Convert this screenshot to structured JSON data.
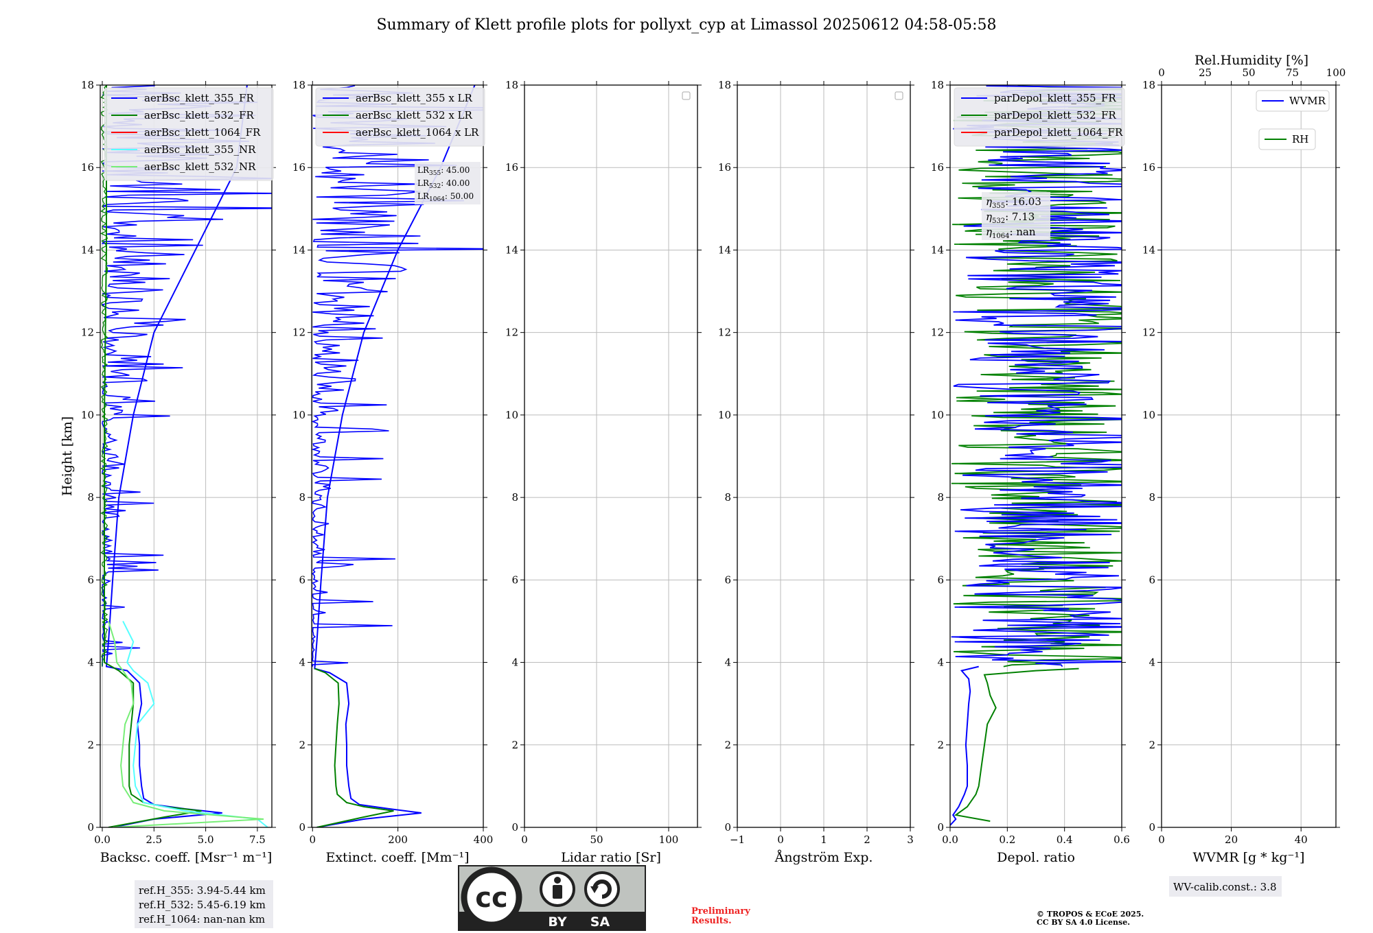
{
  "title": "Summary of Klett profile plots for pollyxt_cyp at Limassol 20250612 04:58-05:58",
  "ylabel": "Height [km]",
  "colors": {
    "blue": "#0000ff",
    "green": "#008000",
    "red": "#ff0000",
    "cyan": "#55ffff",
    "lightgreen": "#77ee77",
    "grid": "#bbbbbb"
  },
  "chart_data": [
    {
      "type": "line",
      "id": "bsc",
      "xlabel": "Backsc. coeff. [Msr⁻¹ m⁻¹]",
      "xlim": [
        -0.1,
        8.2
      ],
      "ylim": [
        0,
        18
      ],
      "xticks": [
        0.0,
        2.5,
        5.0,
        7.5
      ],
      "xtick_labels": [
        "0.0",
        "2.5",
        "5.0",
        "7.5"
      ],
      "yticks": [
        0,
        2,
        4,
        6,
        8,
        10,
        12,
        14,
        16,
        18
      ],
      "legend": [
        "aerBsc_klett_355_FR",
        "aerBsc_klett_532_FR",
        "aerBsc_klett_1064_FR",
        "aerBsc_klett_355_NR",
        "aerBsc_klett_532_NR"
      ],
      "legend_colors": [
        "#0000ff",
        "#008000",
        "#ff0000",
        "#55ffff",
        "#77ee77"
      ],
      "info": [
        "ref.H_355: 3.94-5.44 km",
        "ref.H_532: 5.45-6.19 km",
        "ref.H_1064: nan-nan km"
      ],
      "series": [
        {
          "name": "aerBsc_klett_355_FR",
          "color": "#0000ff",
          "y": [
            0,
            0.2,
            0.35,
            0.45,
            0.55,
            0.7,
            1.0,
            1.5,
            2.0,
            2.5,
            3.0,
            3.5,
            3.8,
            3.9,
            4.5,
            6,
            8,
            10,
            12,
            14,
            16,
            18
          ],
          "x": [
            0.5,
            2.5,
            5.8,
            4.0,
            2.5,
            2.0,
            1.9,
            1.8,
            1.8,
            1.7,
            1.9,
            1.8,
            1.2,
            0.2,
            0.3,
            0.5,
            0.8,
            1.5,
            2.5,
            4.5,
            6.5,
            7.0
          ]
        },
        {
          "name": "aerBsc_klett_532_FR",
          "color": "#008000",
          "y": [
            0,
            0.25,
            0.4,
            0.5,
            0.6,
            0.8,
            1.0,
            1.5,
            2.0,
            2.5,
            3.0,
            3.5,
            3.8,
            4.0,
            6,
            10,
            14,
            18
          ],
          "x": [
            0.3,
            3.0,
            4.8,
            3.0,
            2.0,
            1.4,
            1.3,
            1.3,
            1.3,
            1.4,
            1.5,
            1.5,
            0.8,
            0.1,
            0.1,
            0.1,
            0.2,
            0.2
          ]
        },
        {
          "name": "aerBsc_klett_355_NR",
          "color": "#55ffff",
          "y": [
            0,
            0.2,
            0.4,
            0.6,
            1.0,
            1.5,
            2.0,
            2.5,
            3.0,
            3.5,
            3.8,
            4.0,
            4.5,
            5.0
          ],
          "x": [
            8.0,
            7.5,
            4.0,
            2.0,
            1.6,
            1.5,
            1.6,
            1.7,
            2.5,
            2.2,
            1.5,
            1.2,
            1.5,
            1.0
          ]
        },
        {
          "name": "aerBsc_klett_532_NR",
          "color": "#77ee77",
          "y": [
            0,
            0.2,
            0.4,
            0.6,
            1.0,
            1.5,
            2.0,
            2.5,
            3.0,
            3.5,
            3.8,
            4.0,
            4.5,
            5.0
          ],
          "x": [
            0.5,
            7.8,
            3.0,
            1.5,
            1.0,
            0.9,
            1.0,
            1.1,
            1.5,
            1.4,
            1.0,
            0.7,
            0.6,
            0.3
          ]
        }
      ]
    },
    {
      "type": "line",
      "id": "ext",
      "xlabel": "Extinct. coeff. [Mm⁻¹]",
      "xlim": [
        -2,
        400
      ],
      "ylim": [
        0,
        18
      ],
      "xticks": [
        0,
        200,
        400
      ],
      "xtick_labels": [
        "0",
        "200",
        "400"
      ],
      "yticks": [
        0,
        2,
        4,
        6,
        8,
        10,
        12,
        14,
        16,
        18
      ],
      "legend": [
        "aerBsc_klett_355 x LR",
        "aerBsc_klett_532 x LR",
        "aerBsc_klett_1064 x LR"
      ],
      "legend_colors": [
        "#0000ff",
        "#008000",
        "#ff0000"
      ],
      "lr_info": [
        {
          "prefix": "LR",
          "sub": "355",
          "value": ": 45.00"
        },
        {
          "prefix": "LR",
          "sub": "532",
          "value": ": 40.00"
        },
        {
          "prefix": "LR",
          "sub": "1064",
          "value": ": 50.00"
        }
      ],
      "series": [
        {
          "name": "aerBsc_klett_355 x LR",
          "color": "#0000ff",
          "y": [
            0,
            0.2,
            0.35,
            0.45,
            0.55,
            0.7,
            1.0,
            1.5,
            2.0,
            2.5,
            3.0,
            3.5,
            3.75,
            3.85,
            4.5,
            6,
            8,
            10,
            12,
            14,
            16,
            18
          ],
          "x": [
            10,
            120,
            255,
            180,
            110,
            90,
            85,
            80,
            80,
            78,
            85,
            80,
            40,
            5,
            10,
            20,
            35,
            70,
            120,
            200,
            300,
            380
          ]
        },
        {
          "name": "aerBsc_klett_532 x LR",
          "color": "#008000",
          "y": [
            0,
            0.25,
            0.4,
            0.5,
            0.6,
            0.8,
            1.0,
            1.5,
            2.0,
            2.5,
            3.0,
            3.5,
            3.75,
            3.85
          ],
          "x": [
            10,
            120,
            190,
            120,
            80,
            58,
            55,
            52,
            55,
            58,
            62,
            60,
            30,
            5
          ]
        }
      ]
    },
    {
      "type": "line",
      "id": "lr",
      "xlabel": "Lidar ratio [Sr]",
      "xlim": [
        0,
        120
      ],
      "ylim": [
        0,
        18
      ],
      "xticks": [
        0,
        50,
        100
      ],
      "xtick_labels": [
        "0",
        "50",
        "100"
      ],
      "yticks": [
        0,
        2,
        4,
        6,
        8,
        10,
        12,
        14,
        16,
        18
      ],
      "series": []
    },
    {
      "type": "line",
      "id": "ang",
      "xlabel": "Ångström Exp.",
      "xlim": [
        -1,
        3
      ],
      "ylim": [
        0,
        18
      ],
      "xticks": [
        -1,
        0,
        1,
        2,
        3
      ],
      "xtick_labels": [
        "−1",
        "0",
        "1",
        "2",
        "3"
      ],
      "yticks": [
        0,
        2,
        4,
        6,
        8,
        10,
        12,
        14,
        16,
        18
      ],
      "series": []
    },
    {
      "type": "line",
      "id": "dep",
      "xlabel": "Depol. ratio",
      "xlim": [
        0,
        0.6
      ],
      "ylim": [
        0,
        18
      ],
      "xticks": [
        0.0,
        0.2,
        0.4,
        0.6
      ],
      "xtick_labels": [
        "0.0",
        "0.2",
        "0.4",
        "0.6"
      ],
      "yticks": [
        0,
        2,
        4,
        6,
        8,
        10,
        12,
        14,
        16,
        18
      ],
      "legend": [
        "parDepol_klett_355_FR",
        "parDepol_klett_532_FR",
        "parDepol_klett_1064_FR"
      ],
      "legend_colors": [
        "#0000ff",
        "#008000",
        "#ff0000"
      ],
      "eta_info": [
        {
          "prefix": "η",
          "sub": "355",
          "value": ": 16.03"
        },
        {
          "prefix": "η",
          "sub": "532",
          "value": ": 7.13"
        },
        {
          "prefix": "η",
          "sub": "1064",
          "value": ": nan"
        }
      ],
      "series": [
        {
          "name": "parDepol_klett_355_FR",
          "color": "#0000ff",
          "y": [
            0.05,
            0.2,
            0.3,
            0.5,
            0.8,
            1.0,
            1.5,
            2.0,
            2.5,
            3.0,
            3.3,
            3.6,
            3.8,
            3.9
          ],
          "x": [
            0.0,
            0.02,
            0.01,
            0.03,
            0.05,
            0.06,
            0.06,
            0.055,
            0.06,
            0.065,
            0.07,
            0.065,
            0.04,
            0.1
          ]
        },
        {
          "name": "parDepol_klett_532_FR",
          "color": "#008000",
          "y": [
            0.15,
            0.3,
            0.5,
            0.8,
            1.0,
            1.5,
            2.0,
            2.5,
            2.9,
            3.2,
            3.5,
            3.7,
            3.8,
            3.85
          ],
          "x": [
            0.14,
            0.02,
            0.06,
            0.09,
            0.1,
            0.11,
            0.12,
            0.13,
            0.16,
            0.14,
            0.13,
            0.12,
            0.3,
            0.45
          ]
        }
      ]
    },
    {
      "type": "line",
      "id": "wv",
      "xlabel": "WVMR [g * kg⁻¹]",
      "xlim": [
        0,
        50
      ],
      "ylim": [
        0,
        18
      ],
      "xticks": [
        0,
        20,
        40
      ],
      "xtick_labels": [
        "0",
        "20",
        "40"
      ],
      "yticks": [
        0,
        2,
        4,
        6,
        8,
        10,
        12,
        14,
        16,
        18
      ],
      "top_label": "Rel.Humidity [%]",
      "top_xlim": [
        0,
        100
      ],
      "top_ticks": [
        0,
        25,
        50,
        75,
        100
      ],
      "top_tick_labels": [
        "0",
        "25",
        "50",
        "75",
        "100"
      ],
      "legend": [
        "WVMR",
        "RH"
      ],
      "legend_colors": [
        "#0000ff",
        "#008000"
      ],
      "info": [
        "WV-calib.const.: 3.8"
      ],
      "series": []
    }
  ],
  "footer": {
    "cc_left": "cc",
    "cc_by": "BY",
    "cc_sa": "SA",
    "preliminary_1": "Preliminary",
    "preliminary_2": "Results.",
    "copyright_1": "© TROPOS & ECoE 2025.",
    "copyright_2": "CC BY SA 4.0 License."
  }
}
